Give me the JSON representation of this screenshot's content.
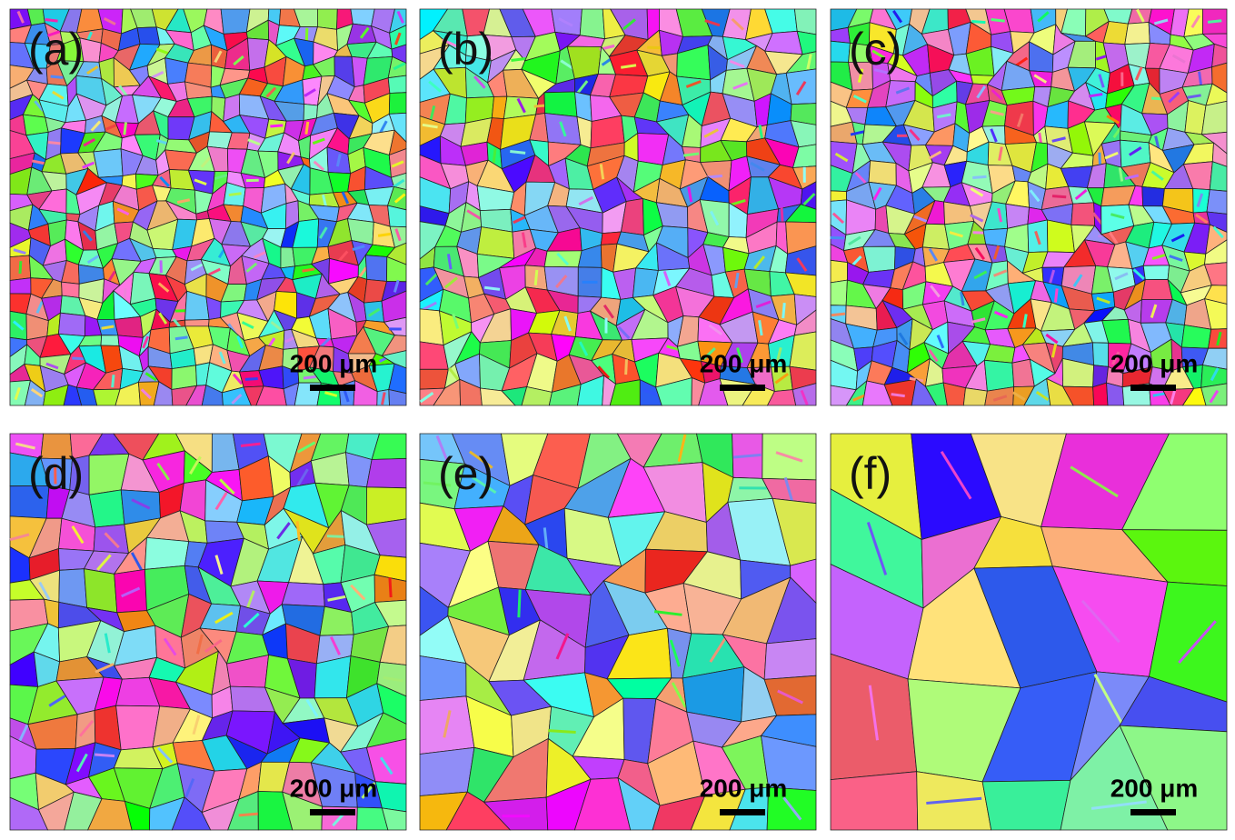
{
  "panels": [
    {
      "label": "(a)",
      "scale": "200 μm"
    },
    {
      "label": "(b)",
      "scale": "200 μm"
    },
    {
      "label": "(c)",
      "scale": "200 μm"
    },
    {
      "label": "(d)",
      "scale": "200 μm"
    },
    {
      "label": "(e)",
      "scale": "200 μm"
    },
    {
      "label": "(f)",
      "scale": "200 μm"
    }
  ]
}
